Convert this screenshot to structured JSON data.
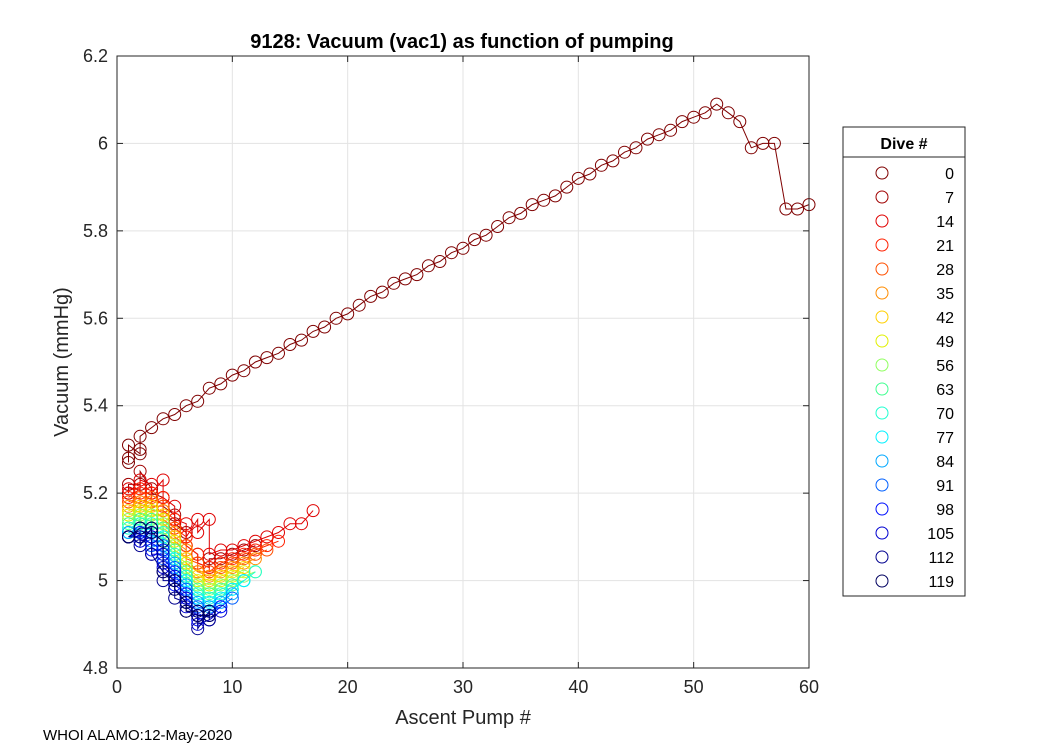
{
  "chart_data": {
    "type": "scatter",
    "title": "9128: Vacuum (vac1) as function of pumping",
    "xlabel": "Ascent Pump #",
    "ylabel": "Vacuum (mmHg)",
    "xlim": [
      0,
      60
    ],
    "ylim": [
      4.8,
      6.2
    ],
    "xticks": [
      0,
      10,
      20,
      30,
      40,
      50,
      60
    ],
    "yticks": [
      4.8,
      5,
      5.2,
      5.4,
      5.6,
      5.8,
      6,
      6.2
    ],
    "xtick_labels": [
      "0",
      "10",
      "20",
      "30",
      "40",
      "50",
      "60"
    ],
    "ytick_labels": [
      "4.8",
      "5",
      "5.2",
      "5.4",
      "5.6",
      "5.8",
      "6",
      "6.2"
    ],
    "grid": true,
    "legend": {
      "title": "Dive #",
      "placement": "right",
      "entries": [
        "0",
        "7",
        "14",
        "21",
        "28",
        "35",
        "42",
        "49",
        "56",
        "63",
        "70",
        "77",
        "84",
        "91",
        "98",
        "105",
        "112",
        "119"
      ],
      "colors": [
        "#7f0000",
        "#a00000",
        "#e00000",
        "#ff2000",
        "#ff5000",
        "#ff8c00",
        "#ffd000",
        "#e0f000",
        "#90ff60",
        "#40ff90",
        "#20ffd0",
        "#00f0ff",
        "#00a8ff",
        "#0060ff",
        "#0010ff",
        "#0000d0",
        "#00008f",
        "#000060"
      ]
    },
    "series": [
      {
        "name": "0",
        "color": "#7f0000",
        "x": [
          1,
          1,
          1,
          2,
          2,
          2,
          3,
          4,
          5,
          6,
          7,
          8,
          9,
          10,
          11,
          12,
          13,
          14,
          15,
          16,
          17,
          18,
          19,
          20,
          21,
          22,
          23,
          24,
          25,
          26,
          27,
          28,
          29,
          30,
          31,
          32,
          33,
          34,
          35,
          36,
          37,
          38,
          39,
          40,
          41,
          42,
          43,
          44,
          45,
          46,
          47,
          48,
          49,
          50,
          51,
          52,
          53,
          54,
          55,
          56,
          57,
          58,
          59,
          60
        ],
        "y": [
          5.27,
          5.28,
          5.31,
          5.29,
          5.3,
          5.33,
          5.35,
          5.37,
          5.38,
          5.4,
          5.41,
          5.44,
          5.45,
          5.47,
          5.48,
          5.5,
          5.51,
          5.52,
          5.54,
          5.55,
          5.57,
          5.58,
          5.6,
          5.61,
          5.63,
          5.65,
          5.66,
          5.68,
          5.69,
          5.7,
          5.72,
          5.73,
          5.75,
          5.76,
          5.78,
          5.79,
          5.81,
          5.83,
          5.84,
          5.86,
          5.87,
          5.88,
          5.9,
          5.92,
          5.93,
          5.95,
          5.96,
          5.98,
          5.99,
          6.01,
          6.02,
          6.03,
          6.05,
          6.06,
          6.07,
          6.09,
          6.07,
          6.05,
          5.99,
          6.0,
          6.0,
          5.85,
          5.85,
          5.86
        ]
      },
      {
        "name": "7",
        "color": "#a00000",
        "x": [
          1,
          1,
          2,
          2,
          3,
          3,
          4,
          4,
          5,
          5,
          6,
          6,
          7,
          7,
          8,
          8,
          9,
          10,
          11,
          12
        ],
        "y": [
          5.2,
          5.22,
          5.22,
          5.25,
          5.21,
          5.2,
          5.19,
          5.17,
          5.15,
          5.13,
          5.11,
          5.08,
          5.06,
          5.04,
          5.03,
          5.05,
          5.05,
          5.06,
          5.07,
          5.08
        ]
      },
      {
        "name": "14",
        "color": "#e00000",
        "x": [
          1,
          1,
          2,
          2,
          3,
          3,
          4,
          4,
          5,
          5,
          6,
          6,
          7,
          7,
          8,
          8,
          9,
          10,
          11,
          12,
          13,
          14,
          15,
          16,
          17
        ],
        "y": [
          5.2,
          5.21,
          5.21,
          5.23,
          5.22,
          5.2,
          5.23,
          5.19,
          5.17,
          5.14,
          5.13,
          5.1,
          5.14,
          5.11,
          5.14,
          5.06,
          5.07,
          5.07,
          5.08,
          5.09,
          5.1,
          5.11,
          5.13,
          5.13,
          5.16
        ]
      },
      {
        "name": "21",
        "color": "#ff2000",
        "x": [
          1,
          2,
          2,
          3,
          3,
          4,
          4,
          5,
          5,
          6,
          6,
          7,
          7,
          8,
          8,
          9,
          10,
          11,
          12,
          13,
          14
        ],
        "y": [
          5.19,
          5.21,
          5.2,
          5.2,
          5.18,
          5.19,
          5.16,
          5.14,
          5.12,
          5.1,
          5.08,
          5.06,
          5.04,
          5.03,
          5.02,
          5.04,
          5.05,
          5.06,
          5.07,
          5.08,
          5.09
        ]
      },
      {
        "name": "28",
        "color": "#ff5000",
        "x": [
          1,
          2,
          2,
          3,
          3,
          4,
          4,
          5,
          5,
          6,
          6,
          7,
          7,
          8,
          9,
          10,
          11,
          12,
          13
        ],
        "y": [
          5.18,
          5.19,
          5.18,
          5.19,
          5.17,
          5.17,
          5.14,
          5.12,
          5.1,
          5.08,
          5.05,
          5.04,
          5.02,
          5.02,
          5.03,
          5.04,
          5.05,
          5.06,
          5.07
        ]
      },
      {
        "name": "35",
        "color": "#ff8c00",
        "x": [
          1,
          2,
          2,
          3,
          3,
          4,
          4,
          5,
          5,
          6,
          6,
          7,
          8,
          9,
          10,
          11,
          12
        ],
        "y": [
          5.17,
          5.18,
          5.17,
          5.18,
          5.16,
          5.16,
          5.13,
          5.11,
          5.09,
          5.07,
          5.04,
          5.02,
          5.01,
          5.02,
          5.03,
          5.04,
          5.05
        ]
      },
      {
        "name": "42",
        "color": "#ffd000",
        "x": [
          1,
          2,
          2,
          3,
          3,
          4,
          4,
          5,
          5,
          6,
          6,
          7,
          8,
          9,
          10,
          11
        ],
        "y": [
          5.16,
          5.17,
          5.16,
          5.17,
          5.15,
          5.15,
          5.12,
          5.1,
          5.07,
          5.05,
          5.03,
          5.01,
          5.0,
          5.01,
          5.02,
          5.03
        ]
      },
      {
        "name": "49",
        "color": "#e0f000",
        "x": [
          1,
          2,
          2,
          3,
          3,
          4,
          4,
          5,
          5,
          6,
          6,
          7,
          8,
          9,
          10,
          11
        ],
        "y": [
          5.15,
          5.16,
          5.15,
          5.16,
          5.14,
          5.14,
          5.11,
          5.09,
          5.06,
          5.04,
          5.02,
          5.0,
          4.99,
          5.0,
          5.01,
          5.02
        ]
      },
      {
        "name": "56",
        "color": "#90ff60",
        "x": [
          1,
          2,
          2,
          3,
          3,
          4,
          4,
          5,
          5,
          6,
          6,
          7,
          8,
          9,
          10,
          11,
          12
        ],
        "y": [
          5.14,
          5.15,
          5.14,
          5.15,
          5.13,
          5.13,
          5.1,
          5.08,
          5.05,
          5.03,
          5.01,
          4.99,
          4.98,
          4.99,
          5.0,
          5.01,
          5.02
        ]
      },
      {
        "name": "63",
        "color": "#40ff90",
        "x": [
          1,
          2,
          2,
          3,
          3,
          4,
          4,
          5,
          5,
          6,
          6,
          7,
          8,
          9,
          10,
          11
        ],
        "y": [
          5.13,
          5.14,
          5.13,
          5.14,
          5.12,
          5.12,
          5.09,
          5.07,
          5.04,
          5.02,
          5.0,
          4.98,
          4.97,
          4.98,
          4.99,
          5.0
        ]
      },
      {
        "name": "70",
        "color": "#20ffd0",
        "x": [
          1,
          2,
          2,
          3,
          3,
          4,
          4,
          5,
          5,
          6,
          6,
          7,
          8,
          9,
          10,
          11,
          12
        ],
        "y": [
          5.12,
          5.13,
          5.12,
          5.13,
          5.11,
          5.11,
          5.08,
          5.06,
          5.03,
          5.01,
          4.99,
          4.97,
          4.96,
          4.97,
          4.98,
          5.0,
          5.02
        ]
      },
      {
        "name": "77",
        "color": "#00f0ff",
        "x": [
          1,
          2,
          2,
          3,
          3,
          4,
          4,
          5,
          5,
          6,
          6,
          7,
          8,
          9,
          10,
          11
        ],
        "y": [
          5.11,
          5.12,
          5.11,
          5.12,
          5.1,
          5.1,
          5.07,
          5.05,
          5.02,
          5.0,
          4.98,
          4.96,
          4.95,
          4.96,
          4.98,
          5.0
        ]
      },
      {
        "name": "84",
        "color": "#00a8ff",
        "x": [
          1,
          2,
          2,
          3,
          3,
          4,
          4,
          5,
          5,
          6,
          6,
          7,
          8,
          9,
          10
        ],
        "y": [
          5.11,
          5.12,
          5.1,
          5.11,
          5.09,
          5.09,
          5.06,
          5.04,
          5.01,
          4.99,
          4.97,
          4.95,
          4.94,
          4.95,
          4.97
        ]
      },
      {
        "name": "91",
        "color": "#0060ff",
        "x": [
          1,
          2,
          2,
          3,
          3,
          4,
          4,
          5,
          5,
          6,
          6,
          7,
          8,
          9,
          10
        ],
        "y": [
          5.1,
          5.11,
          5.1,
          5.11,
          5.08,
          5.08,
          5.05,
          5.03,
          5.0,
          4.98,
          4.96,
          4.94,
          4.93,
          4.94,
          4.96
        ]
      },
      {
        "name": "98",
        "color": "#0010ff",
        "x": [
          1,
          2,
          2,
          3,
          3,
          4,
          4,
          5,
          5,
          6,
          6,
          7,
          7,
          8,
          9
        ],
        "y": [
          5.1,
          5.11,
          5.09,
          5.1,
          5.07,
          5.07,
          5.04,
          5.02,
          4.99,
          4.97,
          4.95,
          4.93,
          4.91,
          4.92,
          4.94
        ]
      },
      {
        "name": "105",
        "color": "#0000d0",
        "x": [
          1,
          2,
          2,
          3,
          3,
          4,
          4,
          5,
          5,
          6,
          6,
          7,
          7,
          8,
          9
        ],
        "y": [
          5.1,
          5.1,
          5.09,
          5.1,
          5.06,
          5.06,
          5.03,
          5.01,
          4.98,
          4.96,
          4.94,
          4.92,
          4.9,
          4.91,
          4.93
        ]
      },
      {
        "name": "112",
        "color": "#00008f",
        "x": [
          1,
          2,
          2,
          3,
          3,
          4,
          4,
          5,
          5,
          6,
          6,
          7,
          7,
          8,
          8
        ],
        "y": [
          5.1,
          5.1,
          5.08,
          5.12,
          5.06,
          5.02,
          5.0,
          5.0,
          4.96,
          4.95,
          4.93,
          4.92,
          4.89,
          4.93,
          4.91
        ]
      },
      {
        "name": "119",
        "color": "#000060",
        "x": [
          1,
          1,
          2,
          2,
          3,
          3,
          4,
          4,
          5,
          5,
          6,
          6,
          7,
          7,
          8,
          8
        ],
        "y": [
          5.1,
          5.1,
          5.12,
          5.12,
          5.12,
          5.11,
          5.09,
          5.02,
          5.0,
          4.98,
          4.95,
          4.93,
          4.93,
          4.92,
          4.92,
          4.93
        ]
      }
    ]
  },
  "footer": {
    "text": "WHOI ALAMO:12-May-2020"
  }
}
